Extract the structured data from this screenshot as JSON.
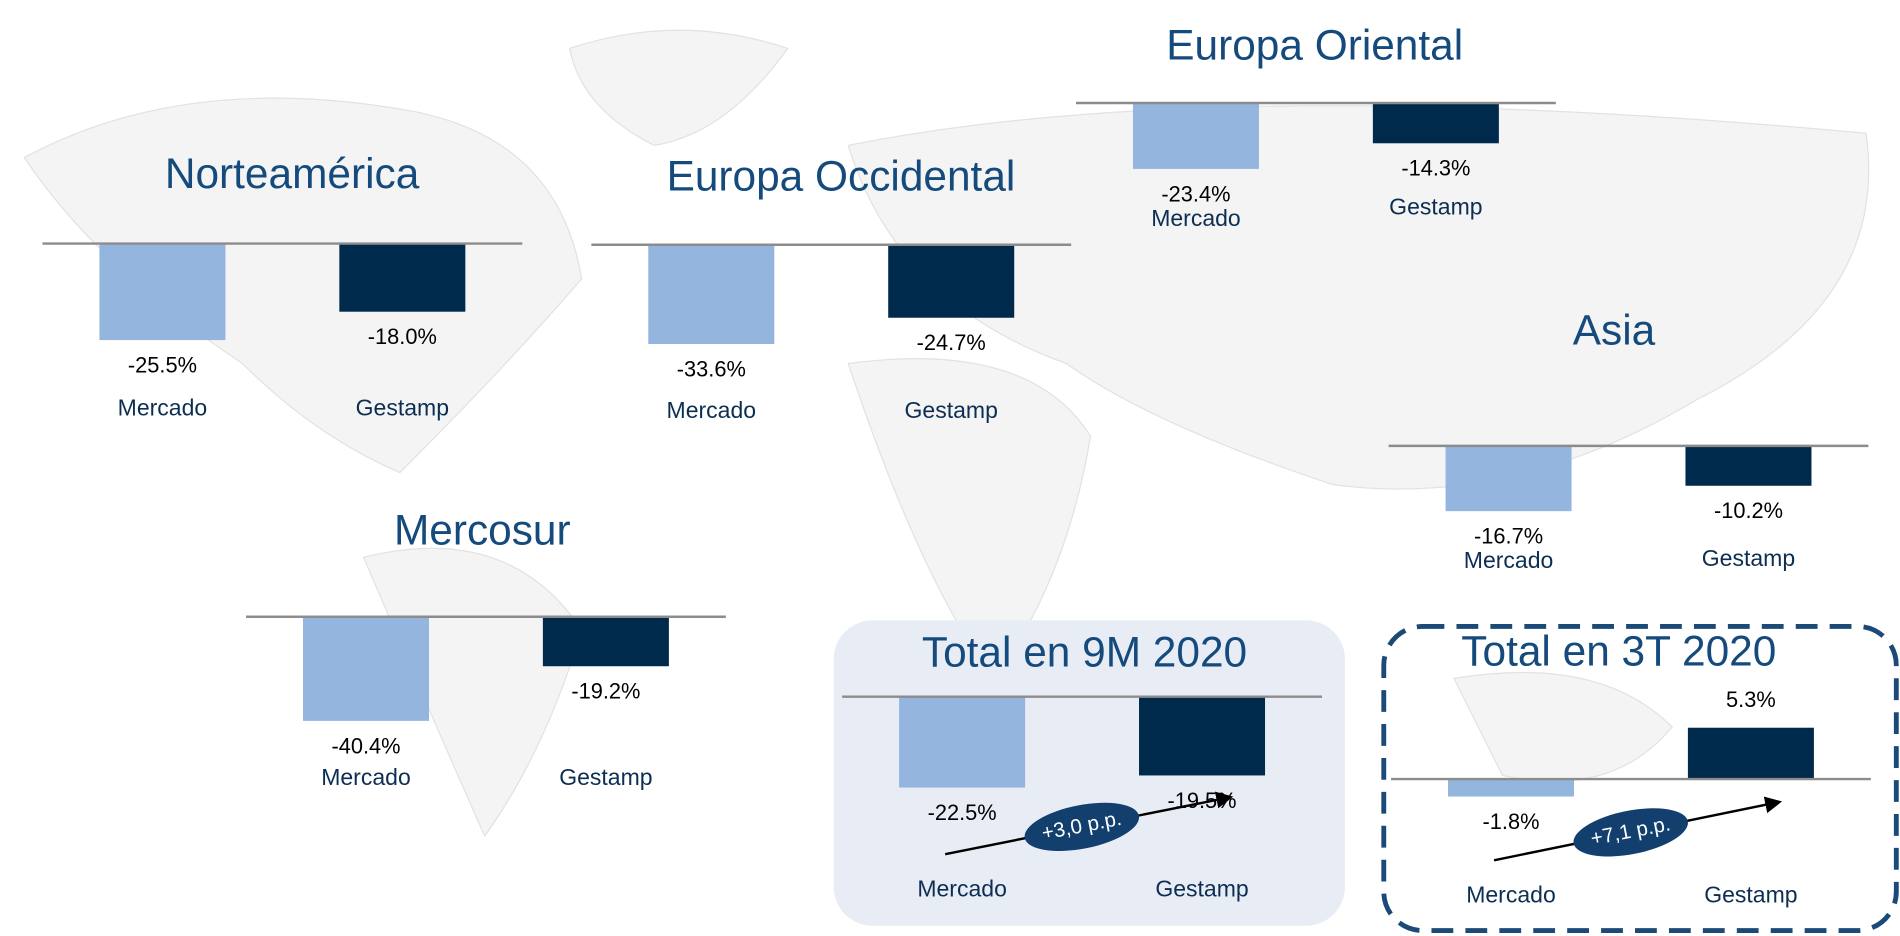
{
  "chart_data": [
    {
      "type": "bar",
      "title": "Norteamérica",
      "categories": [
        "Mercado",
        "Gestamp"
      ],
      "values": [
        -25.5,
        -18.0
      ],
      "value_labels": [
        "-25.5%",
        "-18.0%"
      ],
      "colors": [
        "#93b5de",
        "#002a4c"
      ],
      "ylim": [
        -32,
        0
      ]
    },
    {
      "type": "bar",
      "title": "Europa Occidental",
      "categories": [
        "Mercado",
        "Gestamp"
      ],
      "values": [
        -33.6,
        -24.7
      ],
      "value_labels": [
        "-33.6%",
        "-24.7%"
      ],
      "colors": [
        "#93b5de",
        "#002a4c"
      ],
      "ylim": [
        -41,
        0
      ]
    },
    {
      "type": "bar",
      "title": "Europa Oriental",
      "categories": [
        "Mercado",
        "Gestamp"
      ],
      "values": [
        -23.4,
        -14.3
      ],
      "value_labels": [
        "-23.4%",
        "-14.3%"
      ],
      "colors": [
        "#93b5de",
        "#002a4c"
      ],
      "ylim": [
        -43,
        0
      ]
    },
    {
      "type": "bar",
      "title": "Asia",
      "categories": [
        "Mercado",
        "Gestamp"
      ],
      "values": [
        -16.7,
        -10.2
      ],
      "value_labels": [
        "-16.7%",
        "-10.2%"
      ],
      "colors": [
        "#93b5de",
        "#002a4c"
      ],
      "ylim": [
        -31,
        0
      ]
    },
    {
      "type": "bar",
      "title": "Mercosur",
      "categories": [
        "Mercado",
        "Gestamp"
      ],
      "values": [
        -40.4,
        -19.2
      ],
      "value_labels": [
        "-40.4%",
        "-19.2%"
      ],
      "colors": [
        "#93b5de",
        "#002a4c"
      ],
      "ylim": [
        -47,
        0
      ]
    },
    {
      "type": "bar",
      "title": "Total en 9M 2020",
      "categories": [
        "Mercado",
        "Gestamp"
      ],
      "values": [
        -22.5,
        -19.5
      ],
      "value_labels": [
        "-22.5%",
        "-19.5%"
      ],
      "colors": [
        "#93b5de",
        "#002a4c"
      ],
      "ylim": [
        -30,
        0
      ],
      "annotation": "+3,0 p.p."
    },
    {
      "type": "bar",
      "title": "Total en 3T 2020",
      "categories": [
        "Mercado",
        "Gestamp"
      ],
      "values": [
        -1.8,
        5.3
      ],
      "value_labels": [
        "-1.8%",
        "5.3%"
      ],
      "colors": [
        "#93b5de",
        "#002a4c"
      ],
      "ylim": [
        -6.5,
        6
      ],
      "annotation": "+7,1 p.p."
    }
  ]
}
